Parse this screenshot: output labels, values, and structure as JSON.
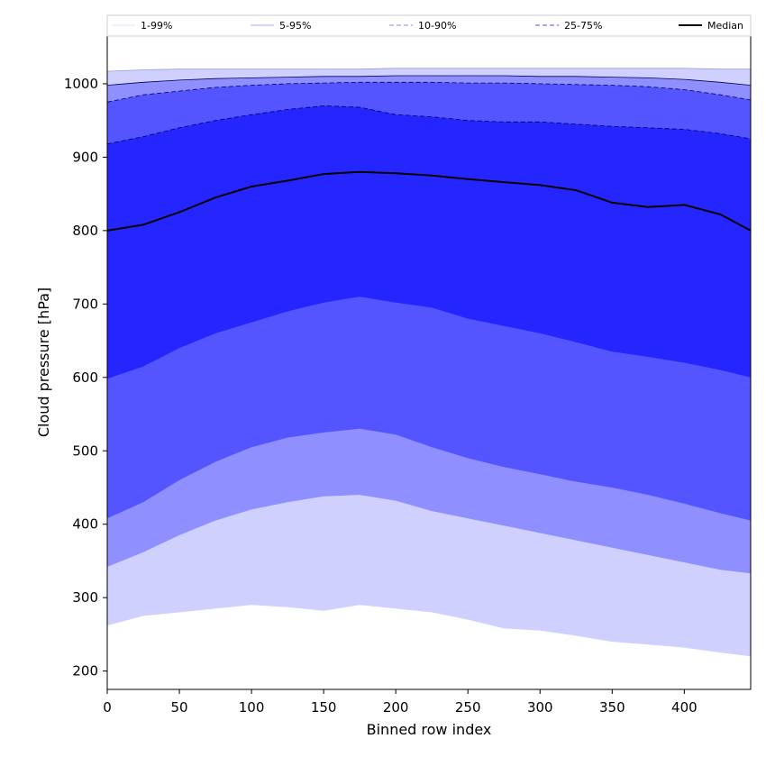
{
  "chart_data": {
    "type": "area",
    "xlabel": "Binned row index",
    "ylabel": "Cloud pressure [hPa]",
    "xlim": [
      0,
      446
    ],
    "ylim": [
      175,
      1065
    ],
    "x_ticks": [
      0,
      50,
      100,
      150,
      200,
      250,
      300,
      350,
      400
    ],
    "y_ticks": [
      200,
      300,
      400,
      500,
      600,
      700,
      800,
      900,
      1000
    ],
    "grid": false,
    "legend_position": "top",
    "legend": [
      {
        "label": "1-99%",
        "color": "#e3e3ff",
        "style": "solid"
      },
      {
        "label": "5-95%",
        "color": "#a9a9ff",
        "style": "solid"
      },
      {
        "label": "10-90%",
        "color": "#8585ff",
        "style": "dashed"
      },
      {
        "label": "25-75%",
        "color": "#5050ff",
        "style": "dashed"
      },
      {
        "label": "Median",
        "color": "#000000",
        "style": "solid"
      }
    ],
    "x": [
      0,
      25,
      50,
      75,
      100,
      125,
      150,
      175,
      200,
      225,
      250,
      275,
      300,
      325,
      350,
      375,
      400,
      425,
      446
    ],
    "bands": [
      {
        "name": "1-99%",
        "color": "#d0d0ff",
        "lower": [
          262,
          275,
          280,
          285,
          290,
          287,
          282,
          290,
          285,
          280,
          270,
          258,
          255,
          248,
          240,
          236,
          232,
          225,
          220
        ],
        "upper": [
          1017,
          1019,
          1020,
          1020,
          1020,
          1020,
          1020,
          1020,
          1021,
          1021,
          1021,
          1021,
          1021,
          1021,
          1021,
          1021,
          1021,
          1020,
          1020
        ]
      },
      {
        "name": "5-95%",
        "color": "#8f8fff",
        "lower": [
          342,
          362,
          385,
          405,
          420,
          430,
          438,
          440,
          432,
          418,
          408,
          398,
          388,
          378,
          368,
          358,
          348,
          338,
          333
        ],
        "upper": [
          998,
          1002,
          1005,
          1007,
          1008,
          1009,
          1010,
          1010,
          1011,
          1011,
          1011,
          1011,
          1010,
          1010,
          1009,
          1008,
          1006,
          1002,
          998
        ]
      },
      {
        "name": "10-90%",
        "color": "#5555ff",
        "lower": [
          408,
          430,
          460,
          485,
          505,
          518,
          525,
          530,
          522,
          505,
          490,
          478,
          468,
          458,
          450,
          440,
          428,
          415,
          405
        ],
        "upper": [
          975,
          985,
          990,
          995,
          998,
          1000,
          1001,
          1002,
          1002,
          1002,
          1001,
          1001,
          1000,
          999,
          998,
          996,
          992,
          985,
          978
        ]
      },
      {
        "name": "25-75%",
        "color": "#2525ff",
        "lower": [
          598,
          615,
          640,
          660,
          675,
          690,
          702,
          710,
          702,
          695,
          680,
          670,
          660,
          648,
          635,
          628,
          620,
          610,
          600
        ],
        "upper": [
          918,
          928,
          940,
          950,
          958,
          965,
          970,
          968,
          958,
          955,
          950,
          948,
          948,
          945,
          942,
          940,
          938,
          932,
          925
        ]
      }
    ],
    "median": [
      800,
      808,
      825,
      845,
      860,
      868,
      877,
      880,
      878,
      875,
      870,
      866,
      862,
      855,
      838,
      832,
      835,
      822,
      800
    ]
  }
}
